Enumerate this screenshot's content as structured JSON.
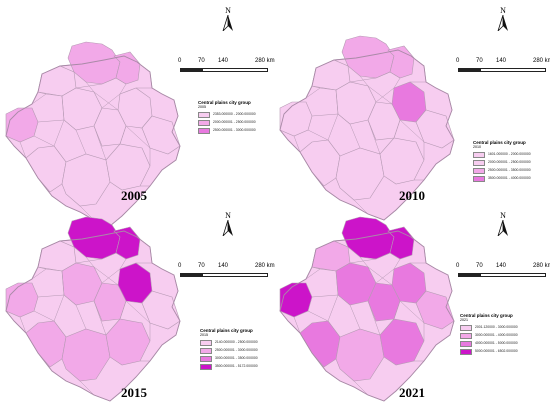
{
  "map_title": "Central plains city group",
  "colors": {
    "c1": "#f7cdf0",
    "c2": "#f2a9e8",
    "c3": "#e879df",
    "c4": "#cc14c9",
    "border": "#b69ab4"
  },
  "scale": {
    "labels": [
      "0",
      "70",
      "140",
      "280 km"
    ]
  },
  "north_label": "N",
  "panels": [
    {
      "year": "2005",
      "legend_sub": "2005",
      "legend": [
        {
          "label": "2353.000000 - 2000.000000",
          "color_key": "c1"
        },
        {
          "label": "2000.000001 - 2500.000000",
          "color_key": "c2"
        },
        {
          "label": "2500.000001 - 3000.000000",
          "color_key": "c3"
        }
      ],
      "region_classes": {
        "north": "c2",
        "northeast": "c2",
        "west": "c2"
      }
    },
    {
      "year": "2010",
      "legend_sub": "2010",
      "legend": [
        {
          "label": "1601.000000 - 2000.000000",
          "color_key": "c1"
        },
        {
          "label": "2000.000001 - 2500.000000",
          "color_key": "c1"
        },
        {
          "label": "2500.000001 - 3500.000000",
          "color_key": "c2"
        },
        {
          "label": "3500.000001 - 4000.000000",
          "color_key": "c3"
        }
      ],
      "region_classes": {
        "north": "c2",
        "northeast": "c2",
        "east_mid": "c3"
      }
    },
    {
      "year": "2015",
      "legend_sub": "2015",
      "legend": [
        {
          "label": "2140.000000 - 2500.000000",
          "color_key": "c1"
        },
        {
          "label": "2500.000001 - 3000.000000",
          "color_key": "c2"
        },
        {
          "label": "3000.000001 - 3500.000000",
          "color_key": "c3"
        },
        {
          "label": "3500.000001 - 5172.000000",
          "color_key": "c4"
        }
      ],
      "region_classes": {
        "north": "c4",
        "northeast": "c4",
        "east_mid": "c4",
        "center": "c2",
        "west": "c2",
        "south": "c2",
        "southwest": "c2",
        "center_east": "c2",
        "southeast": "c2"
      }
    },
    {
      "year": "2021",
      "legend_sub": "2021",
      "legend": [
        {
          "label": "2001.120000 - 3000.000000",
          "color_key": "c1"
        },
        {
          "label": "3000.000001 - 4000.000000",
          "color_key": "c2"
        },
        {
          "label": "4000.000001 - 5000.000000",
          "color_key": "c3"
        },
        {
          "label": "5000.000001 - 6502.000000",
          "color_key": "c4"
        }
      ],
      "region_classes": {
        "north": "c4",
        "northeast": "c4",
        "west": "c4",
        "east_mid": "c3",
        "center": "c3",
        "southwest": "c3",
        "south": "c2",
        "center_east": "c3",
        "southeast": "c3",
        "northwest": "c2",
        "east": "c2"
      }
    }
  ]
}
